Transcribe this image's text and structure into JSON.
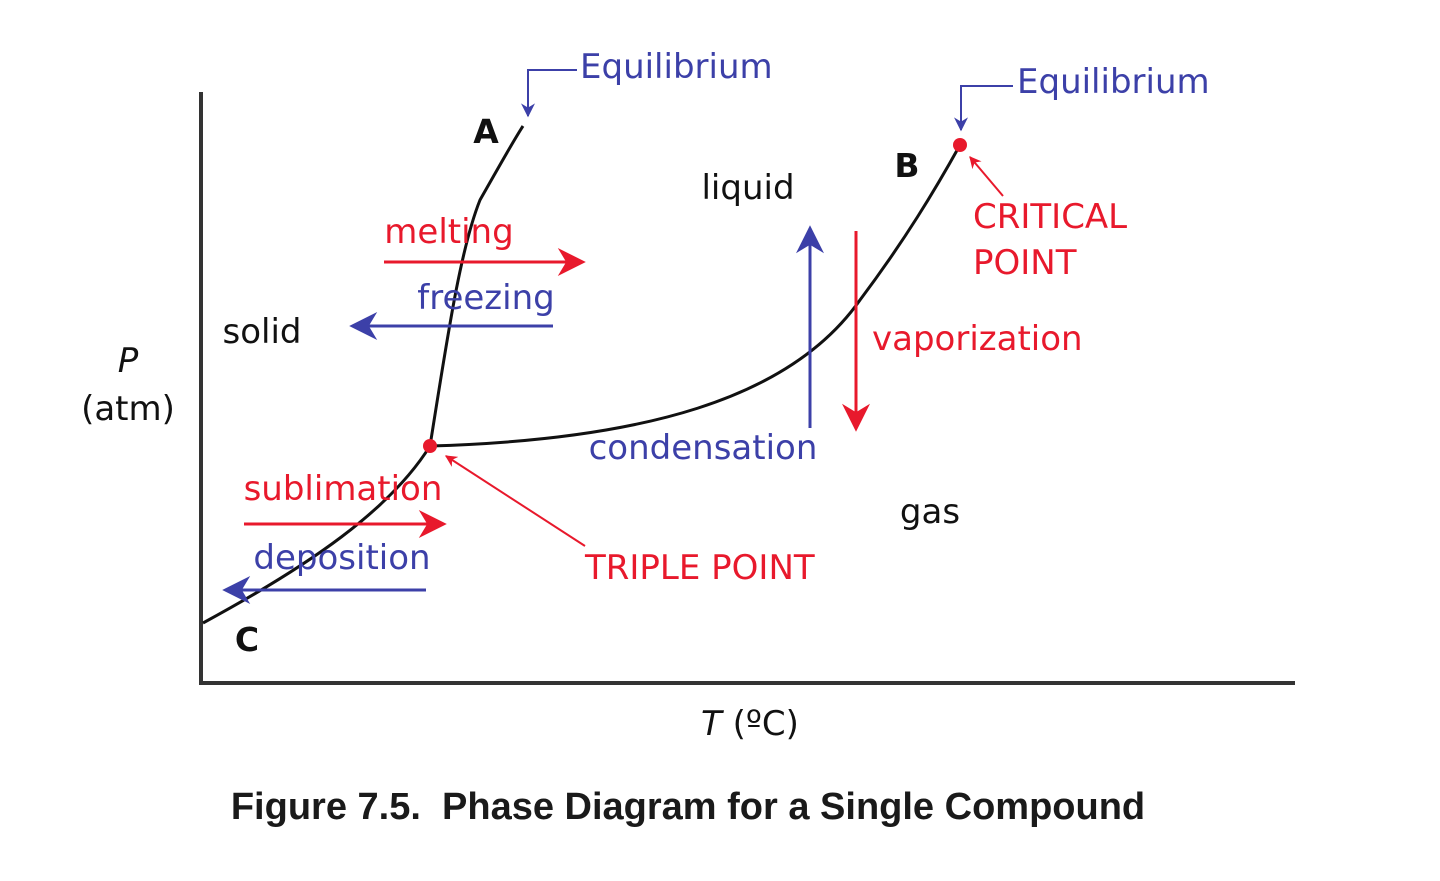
{
  "colors": {
    "black": "#111111",
    "red": "#e8192c",
    "blue": "#3c40a8",
    "caption": "#1a1a1a"
  },
  "axes": {
    "y_label_symbol": "P",
    "y_label_unit": "(atm)",
    "x_label_symbol": "T",
    "x_label_unit": " (ºC)"
  },
  "regions": {
    "solid": "solid",
    "liquid": "liquid",
    "gas": "gas"
  },
  "points": {
    "a": "A",
    "b": "B",
    "c": "C"
  },
  "callouts": {
    "equilibrium_left": "Equilibrium",
    "equilibrium_right": "Equilibrium",
    "critical_line1": "CRITICAL",
    "critical_line2": "POINT",
    "triple_point": "TRIPLE POINT"
  },
  "transitions": {
    "melting": "melting",
    "freezing": "freezing",
    "sublimation": "sublimation",
    "deposition": "deposition",
    "vaporization": "vaporization",
    "condensation": "condensation"
  },
  "caption": "Figure 7.5.  Phase Diagram for a Single Compound"
}
